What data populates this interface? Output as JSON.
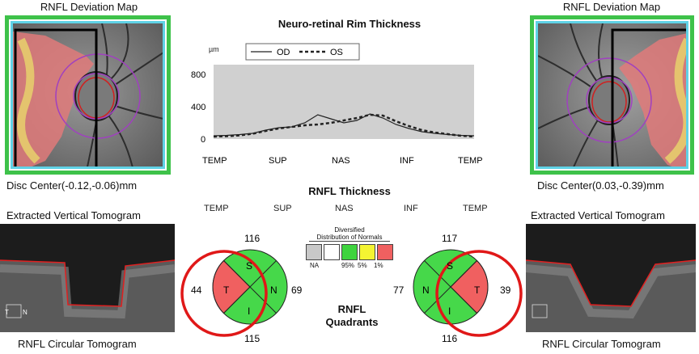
{
  "left_eye": {
    "map_title": "RNFL Deviation Map",
    "disc_center": "Disc Center(-0.12,-0.06)mm",
    "vertical_tomogram": "Extracted Vertical Tomogram",
    "circular_tomogram": "RNFL Circular Tomogram"
  },
  "right_eye": {
    "map_title": "RNFL Deviation Map",
    "disc_center": "Disc Center(0.03,-0.39)mm",
    "vertical_tomogram": "Extracted Vertical Tomogram",
    "circular_tomogram": "RNFL Circular Tomogram"
  },
  "rim_chart": {
    "title": "Neuro-retinal Rim Thickness",
    "unit": "µm",
    "legend": {
      "od": "OD",
      "os": "OS"
    },
    "y_ticks": [
      "800",
      "400",
      "0"
    ],
    "x_ticks": [
      "TEMP",
      "SUP",
      "NAS",
      "INF",
      "TEMP"
    ]
  },
  "rnfl_thickness": {
    "title": "RNFL Thickness",
    "x_ticks": [
      "TEMP",
      "SUP",
      "NAS",
      "INF",
      "TEMP"
    ]
  },
  "quadrants": {
    "title_line1": "RNFL",
    "title_line2": "Quadrants",
    "od": {
      "sup": "116",
      "temp": "44",
      "nas": "69",
      "inf": "115",
      "s": "S",
      "t": "T",
      "n": "N",
      "i": "I"
    },
    "os": {
      "sup": "117",
      "nas": "77",
      "temp": "39",
      "inf": "116",
      "s": "S",
      "n": "N",
      "t": "T",
      "i": "I"
    }
  },
  "normals_legend": {
    "title_line1": "Diversified",
    "title_line2": "Distribution of Normals",
    "labels": [
      "NA",
      "95%",
      "5%",
      "1%"
    ],
    "colors": [
      "#c8c8c8",
      "#ffffff",
      "#3ed43e",
      "#f4f432",
      "#f06060"
    ]
  },
  "tomogram_markers": {
    "left": "T",
    "right": "N"
  },
  "chart_data": {
    "type": "line",
    "title": "Neuro-retinal Rim Thickness",
    "ylabel": "µm",
    "ylim": [
      0,
      900
    ],
    "categories": [
      "TEMP",
      "SUP",
      "NAS",
      "INF",
      "TEMP"
    ],
    "x": [
      0,
      0.05,
      0.1,
      0.15,
      0.2,
      0.25,
      0.3,
      0.35,
      0.4,
      0.45,
      0.5,
      0.55,
      0.6,
      0.65,
      0.7,
      0.75,
      0.8,
      0.85,
      0.9,
      0.95,
      1.0
    ],
    "series": [
      {
        "name": "OD",
        "values": [
          40,
          45,
          55,
          70,
          110,
          140,
          150,
          200,
          300,
          250,
          200,
          230,
          310,
          260,
          180,
          130,
          90,
          70,
          55,
          45,
          40
        ]
      },
      {
        "name": "OS",
        "values": [
          30,
          35,
          45,
          65,
          100,
          130,
          150,
          170,
          180,
          200,
          230,
          260,
          300,
          290,
          220,
          160,
          110,
          80,
          60,
          40,
          30
        ]
      }
    ]
  }
}
